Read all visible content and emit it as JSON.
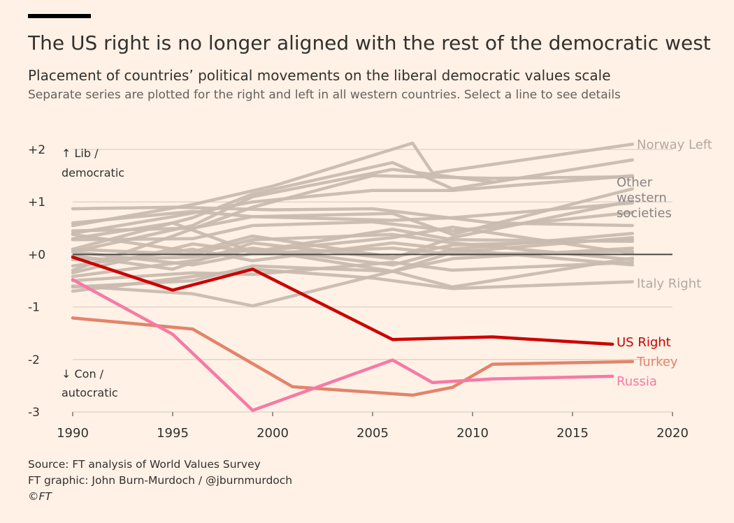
{
  "header": {
    "title": "The US right is no longer aligned with the rest of the democratic west",
    "subtitle": "Placement of countries’ political movements on the liberal democratic values scale",
    "description": "Separate series are plotted for the right and left in all western countries. Select a line to see details"
  },
  "footer": {
    "source": "Source: FT analysis of World Values Survey",
    "credit": "FT graphic: John Burn-Murdoch / @jburnmurdoch",
    "copyright": "©FT"
  },
  "colors": {
    "background": "#fff1e5",
    "background_series": "#c9bab0",
    "us_right": "#cc0000",
    "turkey": "#e3836b",
    "russia": "#f779a6",
    "zero_line": "#4d4845",
    "gridline": "#dcd2c9",
    "other_label": "#8a8384",
    "grey_label": "#b3a8a1"
  },
  "chart_data": {
    "type": "line",
    "xlim": [
      1990,
      2020
    ],
    "ylim": [
      -3,
      2
    ],
    "x_ticks": [
      "1990",
      "1995",
      "2000",
      "2005",
      "2010",
      "2015",
      "2020"
    ],
    "y_ticks": [
      "+2",
      "+1",
      "+0",
      "-1",
      "-2",
      "-3"
    ],
    "axis_notes": {
      "top_line1": "↑ Lib /",
      "top_line2": "democratic",
      "bottom_line1": "↓ Con /",
      "bottom_line2": "autocratic"
    },
    "other_label_lines": [
      "Other",
      "western",
      "societies"
    ],
    "highlighted": [
      {
        "name": "US Right",
        "color": "#cc0000",
        "x": [
          1990,
          1995,
          1999,
          2006,
          2011,
          2017
        ],
        "y": [
          -0.05,
          -0.68,
          -0.28,
          -1.62,
          -1.57,
          -1.71
        ]
      },
      {
        "name": "Turkey",
        "color": "#e3836b",
        "x": [
          1990,
          1996,
          2001,
          2007,
          2009,
          2011,
          2018
        ],
        "y": [
          -1.21,
          -1.42,
          -2.52,
          -2.68,
          -2.53,
          -2.09,
          -2.04
        ]
      },
      {
        "name": "Russia",
        "color": "#f779a6",
        "x": [
          1990,
          1995,
          1999,
          2006,
          2008,
          2011,
          2017
        ],
        "y": [
          -0.48,
          -1.52,
          -2.97,
          -2.01,
          -2.44,
          -2.37,
          -2.32
        ]
      }
    ],
    "background_series": [
      {
        "name": "Norway Left",
        "x": [
          1990,
          1996,
          2000,
          2007,
          2008,
          2018
        ],
        "y": [
          0.55,
          0.95,
          1.3,
          2.12,
          1.55,
          2.1
        ]
      },
      {
        "name": "Italy Right",
        "x": [
          1990,
          1999,
          2005,
          2009,
          2018
        ],
        "y": [
          -0.7,
          -0.28,
          -0.45,
          -0.65,
          -0.52
        ]
      },
      {
        "x": [
          1990,
          1996,
          1999,
          2006,
          2009,
          2018
        ],
        "y": [
          0.1,
          0.7,
          1.15,
          1.75,
          1.25,
          1.8
        ]
      },
      {
        "x": [
          1990,
          1995,
          2000,
          2005,
          2011,
          2018
        ],
        "y": [
          0.87,
          0.9,
          0.85,
          0.87,
          0.6,
          0.55
        ]
      },
      {
        "x": [
          1990,
          1996,
          1999,
          2006,
          2009,
          2018
        ],
        "y": [
          -0.6,
          -0.75,
          -0.98,
          -0.32,
          -0.62,
          -0.07
        ]
      },
      {
        "x": [
          1990,
          1996,
          1999,
          2005,
          2009,
          2018
        ],
        "y": [
          0.28,
          0.3,
          0.55,
          0.62,
          0.45,
          0.8
        ]
      },
      {
        "x": [
          1990,
          1996,
          1999,
          2006,
          2009,
          2018
        ],
        "y": [
          0.45,
          0.5,
          0.72,
          0.78,
          0.38,
          1.25
        ]
      },
      {
        "x": [
          1990,
          1995,
          1999,
          2006,
          2009,
          2018
        ],
        "y": [
          -0.02,
          -0.28,
          0.22,
          -0.08,
          0.32,
          1.02
        ]
      },
      {
        "x": [
          1990,
          1996,
          1999,
          2006,
          2009,
          2018
        ],
        "y": [
          -0.42,
          -0.12,
          0.1,
          -0.32,
          0.04,
          0.32
        ]
      },
      {
        "x": [
          1990,
          1996,
          1999,
          2006,
          2009,
          2018
        ],
        "y": [
          0.38,
          0.05,
          0.35,
          -0.05,
          0.18,
          0.28
        ]
      },
      {
        "x": [
          1990,
          1995,
          1999,
          2005,
          2011,
          2018
        ],
        "y": [
          -0.3,
          0.35,
          0.9,
          1.5,
          1.45,
          1.48
        ]
      },
      {
        "x": [
          1990,
          1996,
          1999,
          2006,
          2009,
          2018
        ],
        "y": [
          0.05,
          -0.2,
          0.02,
          0.12,
          0.0,
          0.06
        ]
      },
      {
        "x": [
          1990,
          1996,
          1999,
          2006,
          2009,
          2018
        ],
        "y": [
          -0.22,
          0.1,
          -0.12,
          0.22,
          0.1,
          -0.2
        ]
      },
      {
        "x": [
          1990,
          1996,
          1999,
          2006,
          2009,
          2018
        ],
        "y": [
          -0.1,
          -0.05,
          0.12,
          -0.2,
          0.1,
          0.4
        ]
      },
      {
        "x": [
          1990,
          1995,
          1999,
          2006,
          2009,
          2018
        ],
        "y": [
          0.3,
          0.6,
          0.05,
          0.32,
          0.52,
          0.02
        ]
      },
      {
        "x": [
          1990,
          1996,
          1999,
          2006,
          2009,
          2018
        ],
        "y": [
          -0.5,
          -0.35,
          -0.38,
          -0.15,
          -0.3,
          -0.15
        ]
      },
      {
        "x": [
          1990,
          1995,
          1999,
          2005,
          2009,
          2018
        ],
        "y": [
          0.4,
          0.72,
          1.0,
          1.22,
          1.22,
          1.5
        ]
      },
      {
        "x": [
          1990,
          1996,
          1999,
          2006,
          2009,
          2018
        ],
        "y": [
          -0.35,
          0.2,
          0.05,
          0.48,
          0.28,
          0.25
        ]
      },
      {
        "x": [
          1990,
          1996,
          1999,
          2006,
          2009,
          2018
        ],
        "y": [
          0.1,
          0.0,
          0.28,
          0.38,
          0.22,
          -0.1
        ]
      },
      {
        "x": [
          1990,
          1996,
          1999,
          2006,
          2009,
          2018
        ],
        "y": [
          -0.62,
          -0.5,
          -0.22,
          -0.32,
          -0.08,
          0.12
        ]
      },
      {
        "x": [
          1990,
          1996,
          1999,
          2006,
          2011
        ],
        "y": [
          0.05,
          0.55,
          1.1,
          1.62,
          1.38
        ]
      },
      {
        "x": [
          1990,
          1996,
          1999,
          2006,
          2009,
          2018
        ],
        "y": [
          0.6,
          0.82,
          0.72,
          0.65,
          0.7,
          0.98
        ]
      }
    ]
  }
}
